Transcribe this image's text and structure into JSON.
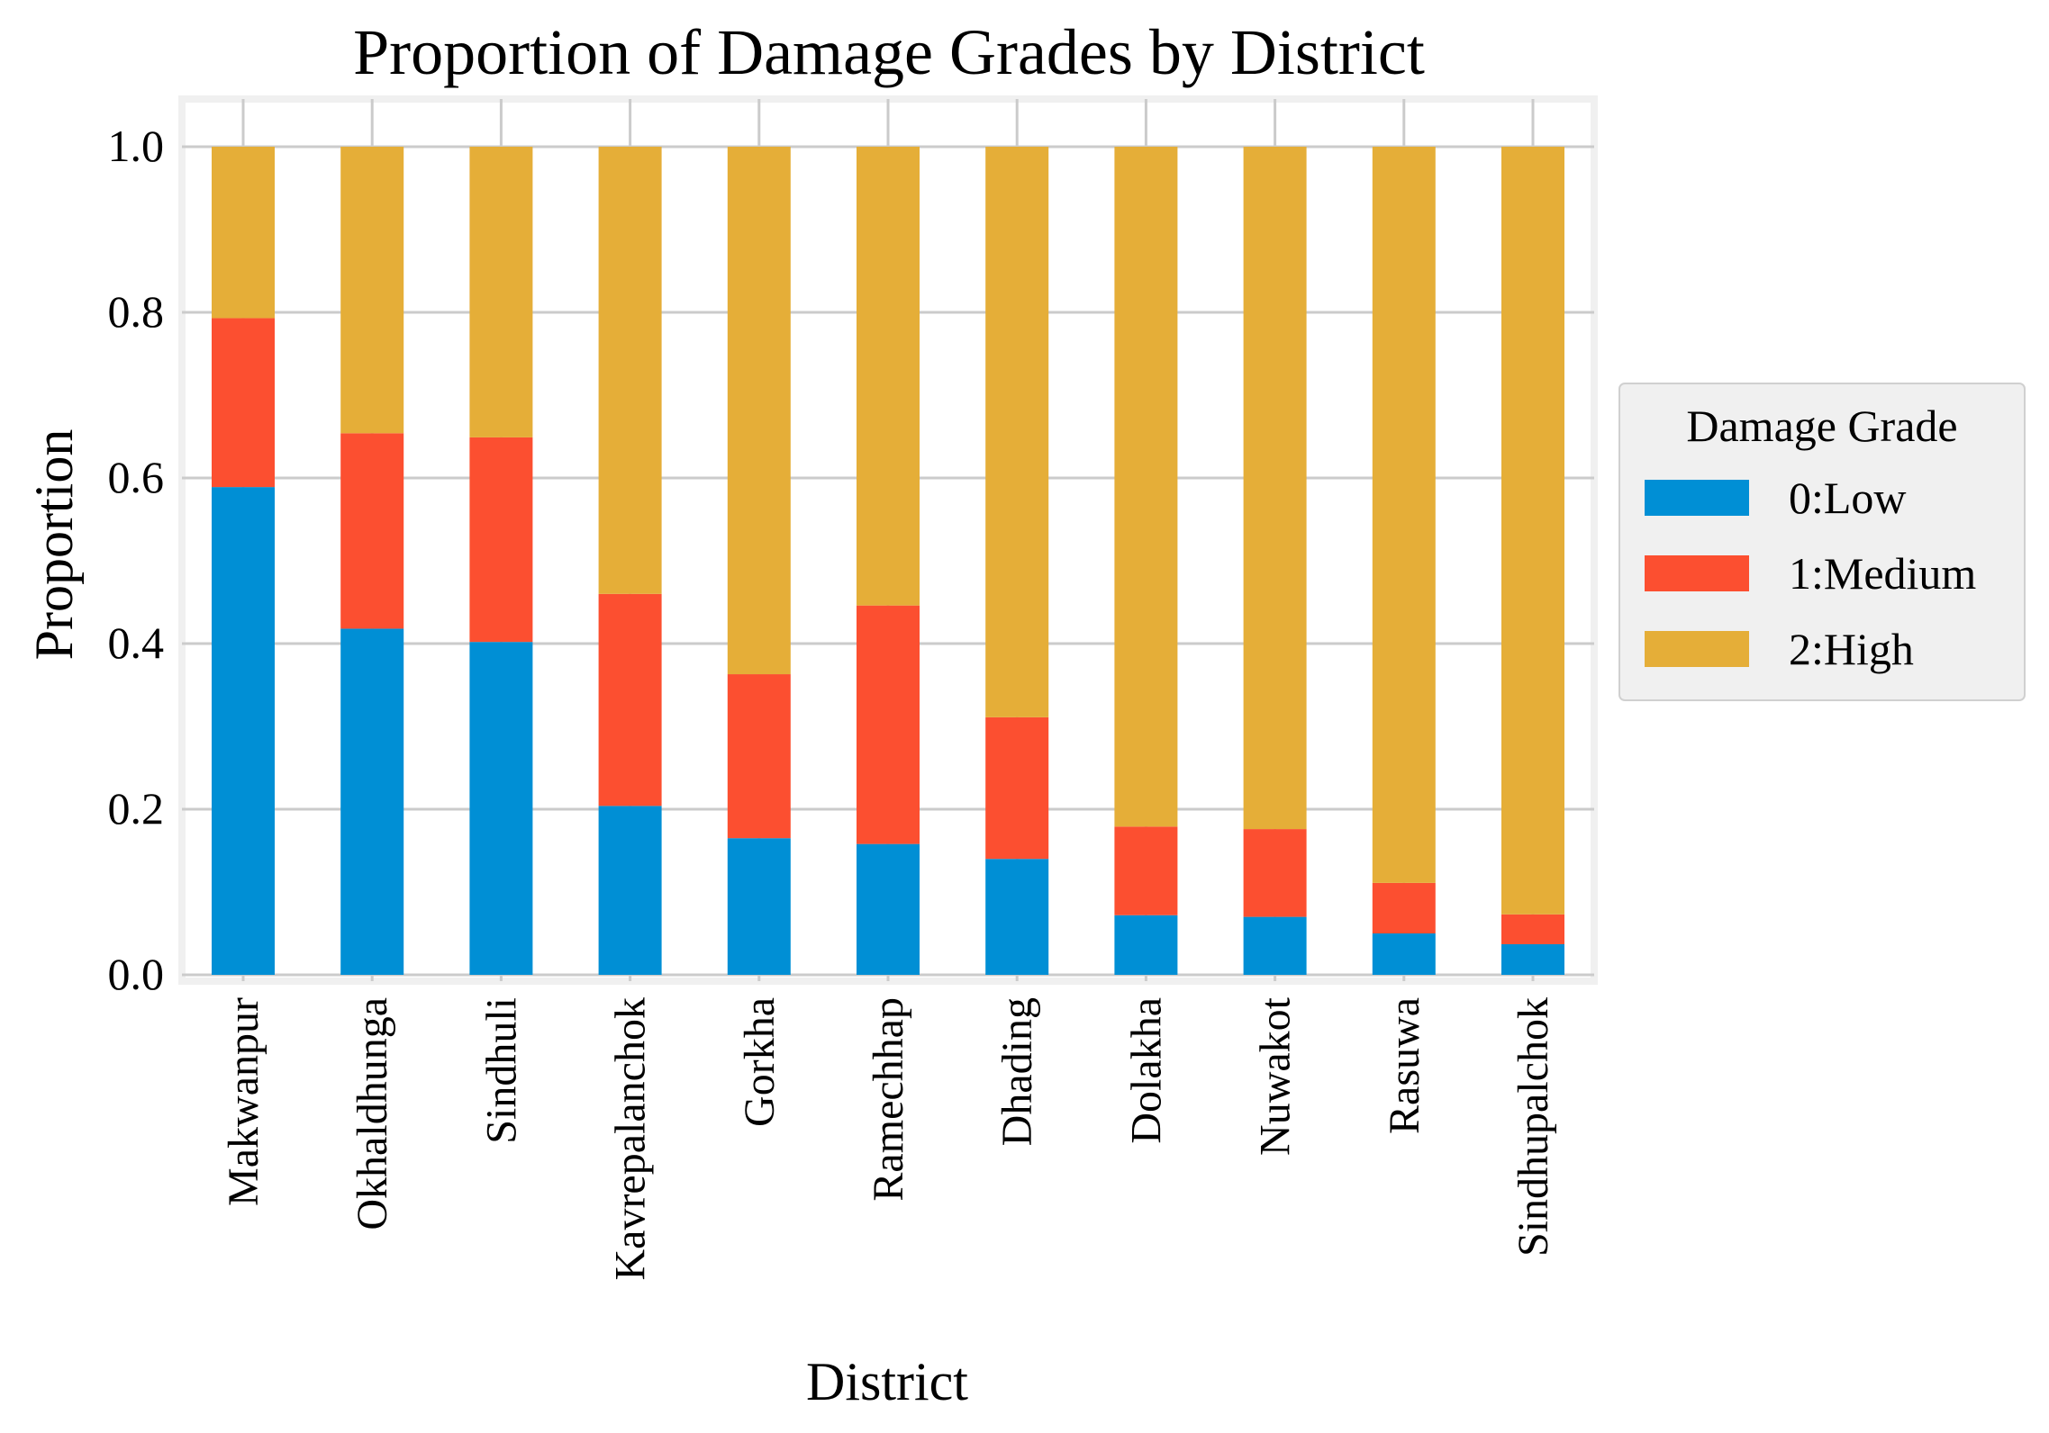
{
  "chart_data": {
    "type": "bar",
    "stacked": true,
    "title": "Proportion of Damage Grades by District",
    "xlabel": "District",
    "ylabel": "Proportion",
    "ylim": [
      0,
      1.05
    ],
    "yticks": [
      "0.0",
      "0.2",
      "0.4",
      "0.6",
      "0.8",
      "1.0"
    ],
    "grid": true,
    "legend_position": "right-center",
    "legend_title": "Damage Grade",
    "categories": [
      "Makwanpur",
      "Okhaldhunga",
      "Sindhuli",
      "Kavrepalanchok",
      "Gorkha",
      "Ramechhap",
      "Dhading",
      "Dolakha",
      "Nuwakot",
      "Rasuwa",
      "Sindhupalchok"
    ],
    "series": [
      {
        "name": "0:Low",
        "color": "#008fd5",
        "values": [
          0.589,
          0.418,
          0.402,
          0.204,
          0.165,
          0.158,
          0.14,
          0.072,
          0.07,
          0.05,
          0.037
        ]
      },
      {
        "name": "1:Medium",
        "color": "#fc4f30",
        "values": [
          0.204,
          0.236,
          0.247,
          0.256,
          0.198,
          0.288,
          0.171,
          0.107,
          0.106,
          0.061,
          0.036
        ]
      },
      {
        "name": "2:High",
        "color": "#e5ae38",
        "values": [
          0.207,
          0.346,
          0.351,
          0.54,
          0.637,
          0.554,
          0.689,
          0.821,
          0.824,
          0.889,
          0.927
        ]
      }
    ]
  }
}
